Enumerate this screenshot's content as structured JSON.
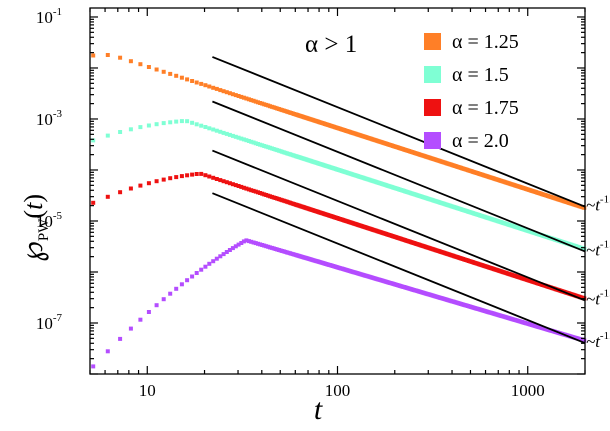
{
  "chart_data": {
    "type": "scatter",
    "title": "",
    "xlabel": "t",
    "ylabel_symbol": "℘",
    "ylabel_sub": "PW",
    "ylabel_arg": "t",
    "xscale": "log",
    "yscale": "log",
    "xlim": [
      5,
      2000
    ],
    "ylim": [
      1e-08,
      0.15
    ],
    "x_ticks": [
      {
        "value": 10,
        "label": "10"
      },
      {
        "value": 100,
        "label": "100"
      },
      {
        "value": 1000,
        "label": "1000"
      }
    ],
    "y_ticks": [
      {
        "value": 0.1,
        "base": "10",
        "exp": "-1"
      },
      {
        "value": 0.001,
        "base": "10",
        "exp": "-3"
      },
      {
        "value": 1e-05,
        "base": "10",
        "exp": "-5"
      },
      {
        "value": 1e-07,
        "base": "10",
        "exp": "-7"
      }
    ],
    "annotation": "α > 1",
    "legend_position": "top-right",
    "series": [
      {
        "name": "α = 1.25",
        "color": "#ff7f27",
        "peak_t": 6.5,
        "peak_p": 0.018,
        "early_slope": 0.0,
        "late_slope": -1.5,
        "tail_t": 2000,
        "tail_p": 1.8e-05
      },
      {
        "name": "α = 1.5",
        "color": "#7fffd4",
        "peak_t": 16,
        "peak_p": 0.00092,
        "early_slope": 0.25,
        "late_slope": -1.5,
        "tail_t": 2000,
        "tail_p": 2.8e-06
      },
      {
        "name": "α = 1.75",
        "color": "#ee1111",
        "peak_t": 19,
        "peak_p": 8.5e-05,
        "early_slope": 0.4,
        "late_slope": -1.5,
        "tail_t": 2000,
        "tail_p": 3e-07
      },
      {
        "name": "α = 2.0",
        "color": "#b44dff",
        "peak_t": 33,
        "peak_p": 4.2e-06,
        "early_slope": 2.2,
        "late_slope": -1.5,
        "tail_t": 2000,
        "tail_p": 4.5e-08
      }
    ],
    "reference_lines": [
      {
        "label": "~t",
        "exponent": "-1.5",
        "t_start": 22,
        "p_start": 0.0165,
        "t_end": 2000,
        "slope": -1.5
      },
      {
        "label": "~t",
        "exponent": "-1.5",
        "t_start": 22,
        "p_start": 0.0022,
        "t_end": 2000,
        "slope": -1.5
      },
      {
        "label": "~t",
        "exponent": "-1.5",
        "t_start": 22,
        "p_start": 0.00024,
        "t_end": 2000,
        "slope": -1.5
      },
      {
        "label": "~t",
        "exponent": "-1.5",
        "t_start": 22,
        "p_start": 3.5e-05,
        "t_end": 2000,
        "slope": -1.5
      }
    ]
  }
}
